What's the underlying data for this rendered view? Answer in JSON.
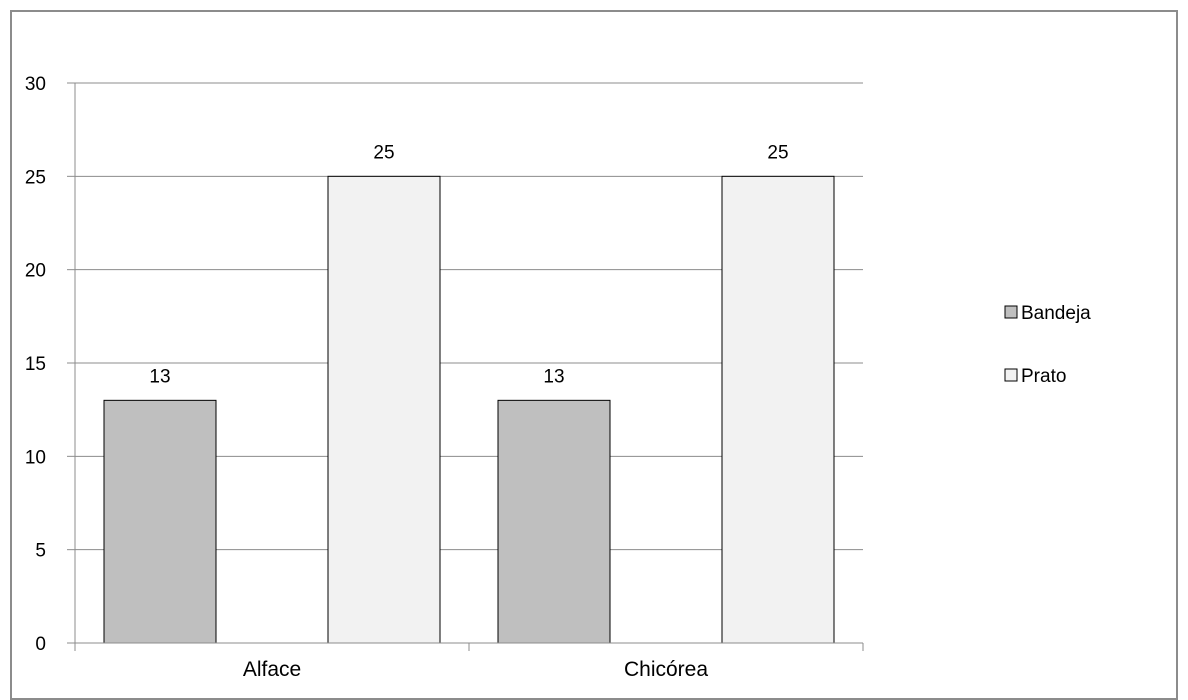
{
  "chart_data": {
    "type": "bar",
    "categories": [
      "Alface",
      "Chicórea"
    ],
    "series": [
      {
        "name": "Bandeja",
        "values": [
          13,
          13
        ],
        "color": "#bfbfbf"
      },
      {
        "name": "Prato",
        "values": [
          25,
          25
        ],
        "color": "#f2f2f2"
      }
    ],
    "ylim": [
      0,
      30
    ],
    "yticks": [
      "0",
      "5",
      "10",
      "15",
      "20",
      "25",
      "30"
    ],
    "ytick_values": [
      0,
      5,
      10,
      15,
      20,
      25,
      30
    ],
    "grid": true,
    "legend_position": "right",
    "data_labels": true,
    "title": "",
    "xlabel": "",
    "ylabel": ""
  }
}
